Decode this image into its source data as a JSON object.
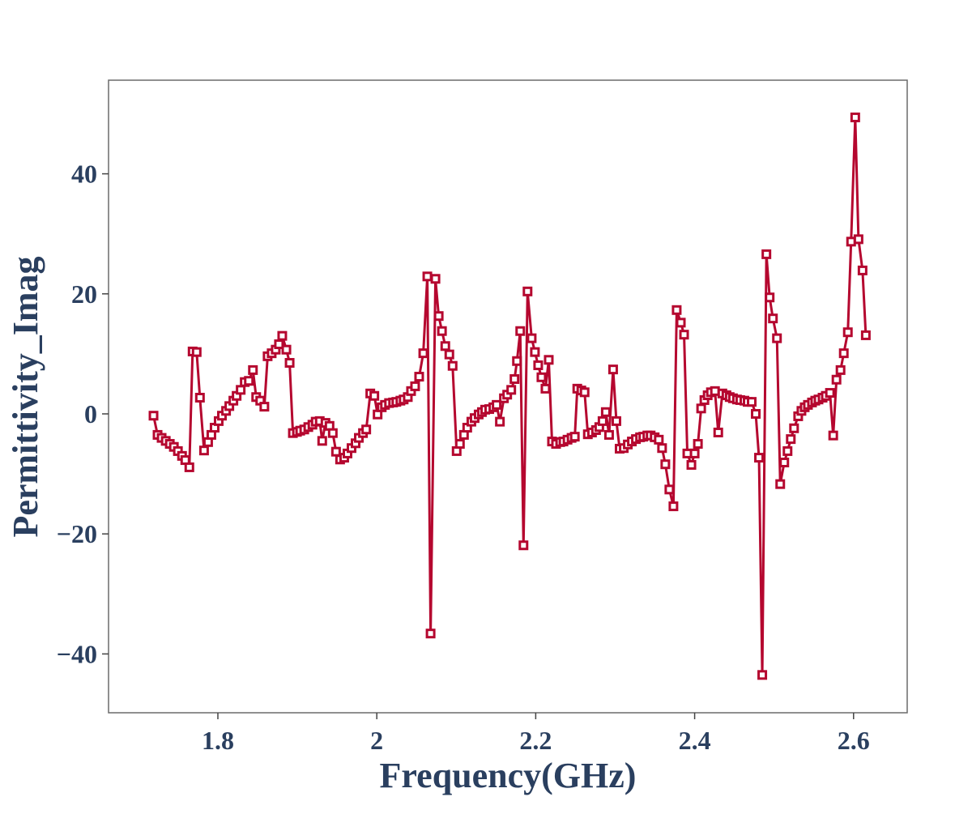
{
  "chart_data": {
    "type": "line",
    "x_label": "Frequency(GHz)",
    "y_label": "Permittivity_Imag",
    "color": "#b5072f",
    "marker": "square",
    "xlim": [
      1.6624,
      2.6675
    ],
    "ylim": [
      -49.8,
      55.6
    ],
    "xticks": [
      1.8,
      2,
      2.2,
      2.4,
      2.6
    ],
    "yticks": [
      {
        "value": -40,
        "label": "−40"
      },
      {
        "value": -20,
        "label": "−20"
      },
      0,
      20,
      40
    ],
    "x": [
      1.719,
      1.7241,
      1.7292,
      1.7344,
      1.7395,
      1.7446,
      1.7497,
      1.7549,
      1.759,
      1.7641,
      1.7682,
      1.7733,
      1.7774,
      1.7826,
      1.7877,
      1.7918,
      1.7959,
      1.801,
      1.8051,
      1.8103,
      1.8144,
      1.8195,
      1.8236,
      1.8287,
      1.8338,
      1.839,
      1.8441,
      1.8482,
      1.8533,
      1.8585,
      1.8626,
      1.8677,
      1.8728,
      1.8769,
      1.881,
      1.8862,
      1.8903,
      1.8944,
      1.8995,
      1.9036,
      1.9087,
      1.9138,
      1.919,
      1.9231,
      1.9282,
      1.9313,
      1.9354,
      1.9405,
      1.9446,
      1.9487,
      1.9538,
      1.959,
      1.9631,
      1.9682,
      1.9733,
      1.9774,
      1.9826,
      1.9867,
      1.9918,
      1.9969,
      2.001,
      2.0062,
      2.0103,
      2.0154,
      2.0205,
      2.0246,
      2.0297,
      2.0338,
      2.039,
      2.0431,
      2.0482,
      2.0533,
      2.0585,
      2.0636,
      2.0677,
      2.0738,
      2.0779,
      2.082,
      2.0862,
      2.0913,
      2.0954,
      2.1005,
      2.1046,
      2.1097,
      2.1138,
      2.119,
      2.1231,
      2.1282,
      2.1323,
      2.1364,
      2.1415,
      2.1467,
      2.1508,
      2.1549,
      2.16,
      2.1641,
      2.1692,
      2.1733,
      2.1764,
      2.1805,
      2.1846,
      2.1897,
      2.1949,
      2.199,
      2.2031,
      2.2072,
      2.2123,
      2.2164,
      2.2205,
      2.2256,
      2.2308,
      2.2349,
      2.24,
      2.2451,
      2.2492,
      2.2523,
      2.2574,
      2.2615,
      2.2656,
      2.2708,
      2.2759,
      2.28,
      2.2841,
      2.2882,
      2.2923,
      2.2974,
      2.3015,
      2.3056,
      2.3108,
      2.3159,
      2.321,
      2.3261,
      2.3313,
      2.3354,
      2.3405,
      2.3446,
      2.3497,
      2.3549,
      2.359,
      2.3631,
      2.3682,
      2.3733,
      2.3774,
      2.3826,
      2.3867,
      2.3908,
      2.3959,
      2.4,
      2.4041,
      2.4082,
      2.4123,
      2.4164,
      2.4205,
      2.4256,
      2.4297,
      2.4349,
      2.44,
      2.4441,
      2.4482,
      2.4533,
      2.4574,
      2.4626,
      2.4667,
      2.4718,
      2.4769,
      2.481,
      2.4851,
      2.4903,
      2.4944,
      2.4985,
      2.5036,
      2.5077,
      2.5128,
      2.5169,
      2.521,
      2.5251,
      2.5303,
      2.5344,
      2.5385,
      2.5426,
      2.5477,
      2.5518,
      2.5559,
      2.561,
      2.5651,
      2.5703,
      2.5744,
      2.5785,
      2.5836,
      2.5877,
      2.5928,
      2.5969,
      2.6021,
      2.6062,
      2.6113,
      2.6154
    ],
    "values": [
      -0.3,
      -3.5,
      -4,
      -4.5,
      -5,
      -5.5,
      -6.2,
      -7,
      -7.7,
      -8.9,
      10.4,
      10.3,
      2.7,
      -6.1,
      -4.7,
      -3.5,
      -2.3,
      -1.2,
      -0.3,
      0.5,
      1.3,
      2.2,
      3,
      4,
      5.3,
      5.5,
      7.3,
      2.8,
      2.2,
      1.2,
      9.6,
      10.1,
      10.7,
      11.6,
      13,
      10.7,
      8.5,
      -3.2,
      -3,
      -2.8,
      -2.6,
      -2.2,
      -1.8,
      -1.3,
      -1.2,
      -4.5,
      -1.5,
      -2,
      -3.2,
      -6.3,
      -7.6,
      -7.3,
      -6.6,
      -5.7,
      -4.9,
      -4,
      -3.2,
      -2.6,
      3.4,
      3,
      -0.1,
      1.1,
      1.5,
      1.8,
      1.9,
      2,
      2.2,
      2.4,
      2.8,
      3.8,
      4.6,
      6.2,
      10.1,
      22.9,
      -36.6,
      22.5,
      16.3,
      13.8,
      11.3,
      9.9,
      8,
      -6.2,
      -5,
      -3.5,
      -2.3,
      -1.3,
      -0.7,
      -0.1,
      0.3,
      0.7,
      0.8,
      1.1,
      1.5,
      -1.3,
      2.6,
      3.2,
      4,
      5.8,
      8.8,
      13.8,
      -21.9,
      20.4,
      12.6,
      10.3,
      8.1,
      6.1,
      4.2,
      9,
      -4.6,
      -5,
      -4.7,
      -4.6,
      -4.3,
      -4,
      -3.8,
      4.2,
      3.9,
      3.6,
      -3.4,
      -3.1,
      -2.7,
      -2.2,
      -1.2,
      0.3,
      -3.5,
      7.4,
      -1.2,
      -5.8,
      -5.7,
      -5.1,
      -4.6,
      -4.2,
      -3.9,
      -3.8,
      -3.6,
      -3.6,
      -3.9,
      -4.3,
      -5.7,
      -8.4,
      -12.6,
      -15.4,
      17.3,
      15.2,
      13.2,
      -6.6,
      -8.5,
      -6.6,
      -5,
      0.9,
      2.3,
      3.1,
      3.6,
      3.8,
      -3.1,
      3.4,
      3.1,
      2.8,
      2.6,
      2.4,
      2.3,
      2.2,
      2,
      2,
      0,
      -7.3,
      -43.5,
      26.6,
      19.4,
      15.9,
      12.6,
      -11.7,
      -8.1,
      -6.2,
      -4.2,
      -2.4,
      -0.4,
      0.5,
      1.1,
      1.5,
      1.9,
      2.2,
      2.4,
      2.7,
      3,
      3.5,
      -3.6,
      5.7,
      7.3,
      10.1,
      13.6,
      28.7,
      49.4,
      29.1,
      23.9,
      13.1
    ]
  }
}
